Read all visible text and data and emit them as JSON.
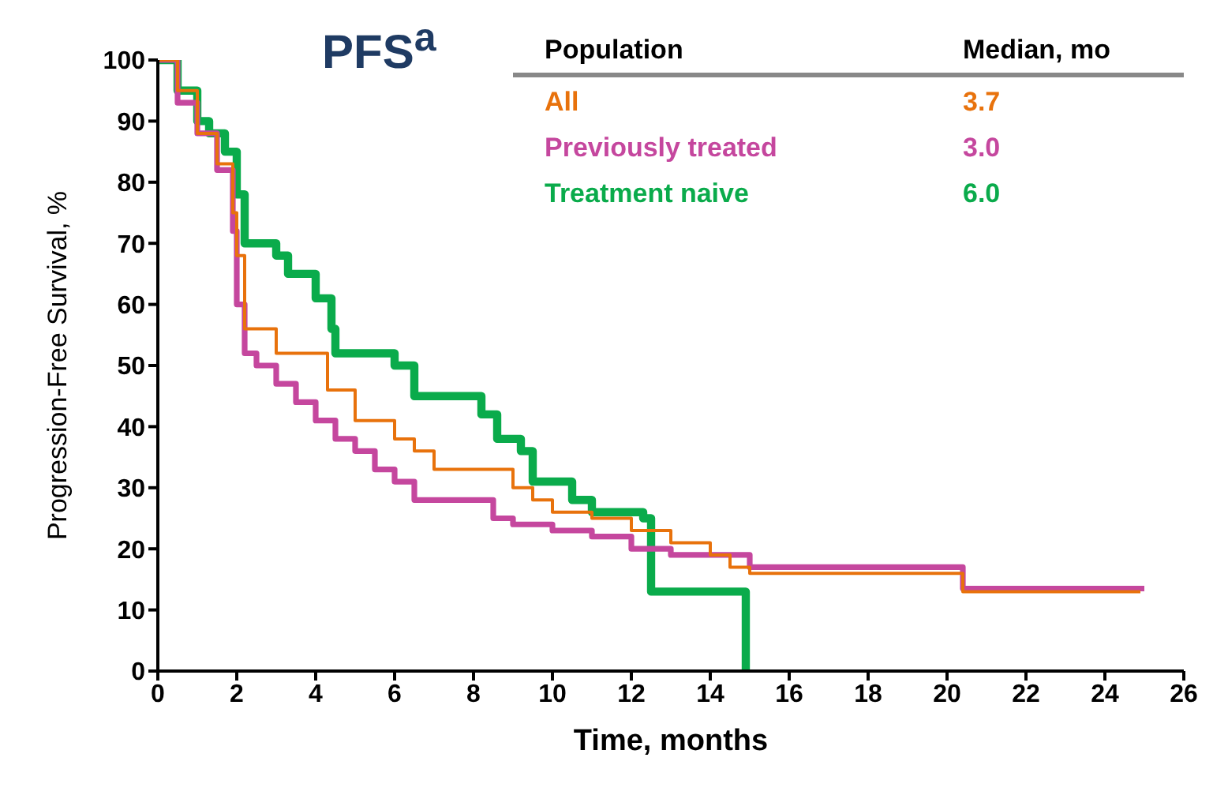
{
  "chart_data": {
    "type": "step",
    "title": "PFS$^{a}$",
    "xlabel": "Time, months",
    "ylabel": "Progression-Free Survival, %",
    "legend_title": "Population",
    "annotations": [
      "Median, mo",
      "3.7",
      "3.0",
      "6.0"
    ],
    "legend": "top right",
    "grid": false,
    "marker": "none",
    "xlim": [
      0,
      26
    ],
    "xticks": [
      0,
      2,
      4,
      6,
      8,
      10,
      12,
      14,
      16,
      18,
      20,
      22,
      24,
      26
    ],
    "ylim": [
      0,
      100
    ],
    "yticks": [
      0,
      10,
      20,
      30,
      40,
      50,
      60,
      70,
      80,
      90,
      100
    ],
    "series": [
      {
        "name": "All",
        "color": "#e8720c",
        "x": [
          0,
          0.5,
          1,
          1.5,
          1.9,
          2.0,
          2.2,
          3.0,
          4.3,
          5,
          6,
          6.5,
          7,
          8,
          9,
          9.5,
          10,
          11,
          12,
          13,
          14,
          14.5,
          15,
          20.4,
          24.9
        ],
        "values": [
          100,
          95,
          88,
          83,
          75,
          68,
          56,
          52,
          46,
          41,
          38,
          36,
          33,
          33,
          30,
          28,
          26,
          25,
          23,
          21,
          19,
          17,
          16,
          13,
          13
        ]
      },
      {
        "name": "Previously treated",
        "color": "#c5479e",
        "x": [
          0,
          0.5,
          1,
          1.5,
          1.9,
          2.0,
          2.2,
          2.5,
          3,
          3.5,
          4,
          4.5,
          5,
          5.5,
          6,
          6.5,
          8,
          8.5,
          9,
          10,
          11,
          12,
          13,
          15,
          20.4,
          25
        ],
        "values": [
          100,
          93,
          88,
          82,
          72,
          60,
          52,
          50,
          47,
          44,
          41,
          38,
          36,
          33,
          31,
          28,
          28,
          25,
          24,
          23,
          22,
          20,
          19,
          17,
          13.5,
          13.5
        ]
      },
      {
        "name": "Treatment naive",
        "color": "#0aab4b",
        "x": [
          0,
          0.5,
          1,
          1.3,
          1.7,
          2.0,
          2.2,
          3.0,
          3.3,
          4.0,
          4.4,
          4.5,
          6.0,
          6.5,
          8.0,
          8.2,
          8.6,
          9.2,
          9.5,
          10.5,
          11,
          12.3,
          12.5,
          14.8,
          14.9
        ],
        "values": [
          100,
          95,
          90,
          88,
          85,
          78,
          70,
          68,
          65,
          61,
          56,
          52,
          50,
          45,
          45,
          42,
          38,
          36,
          31,
          28,
          26,
          25,
          13,
          13,
          0
        ]
      }
    ]
  }
}
